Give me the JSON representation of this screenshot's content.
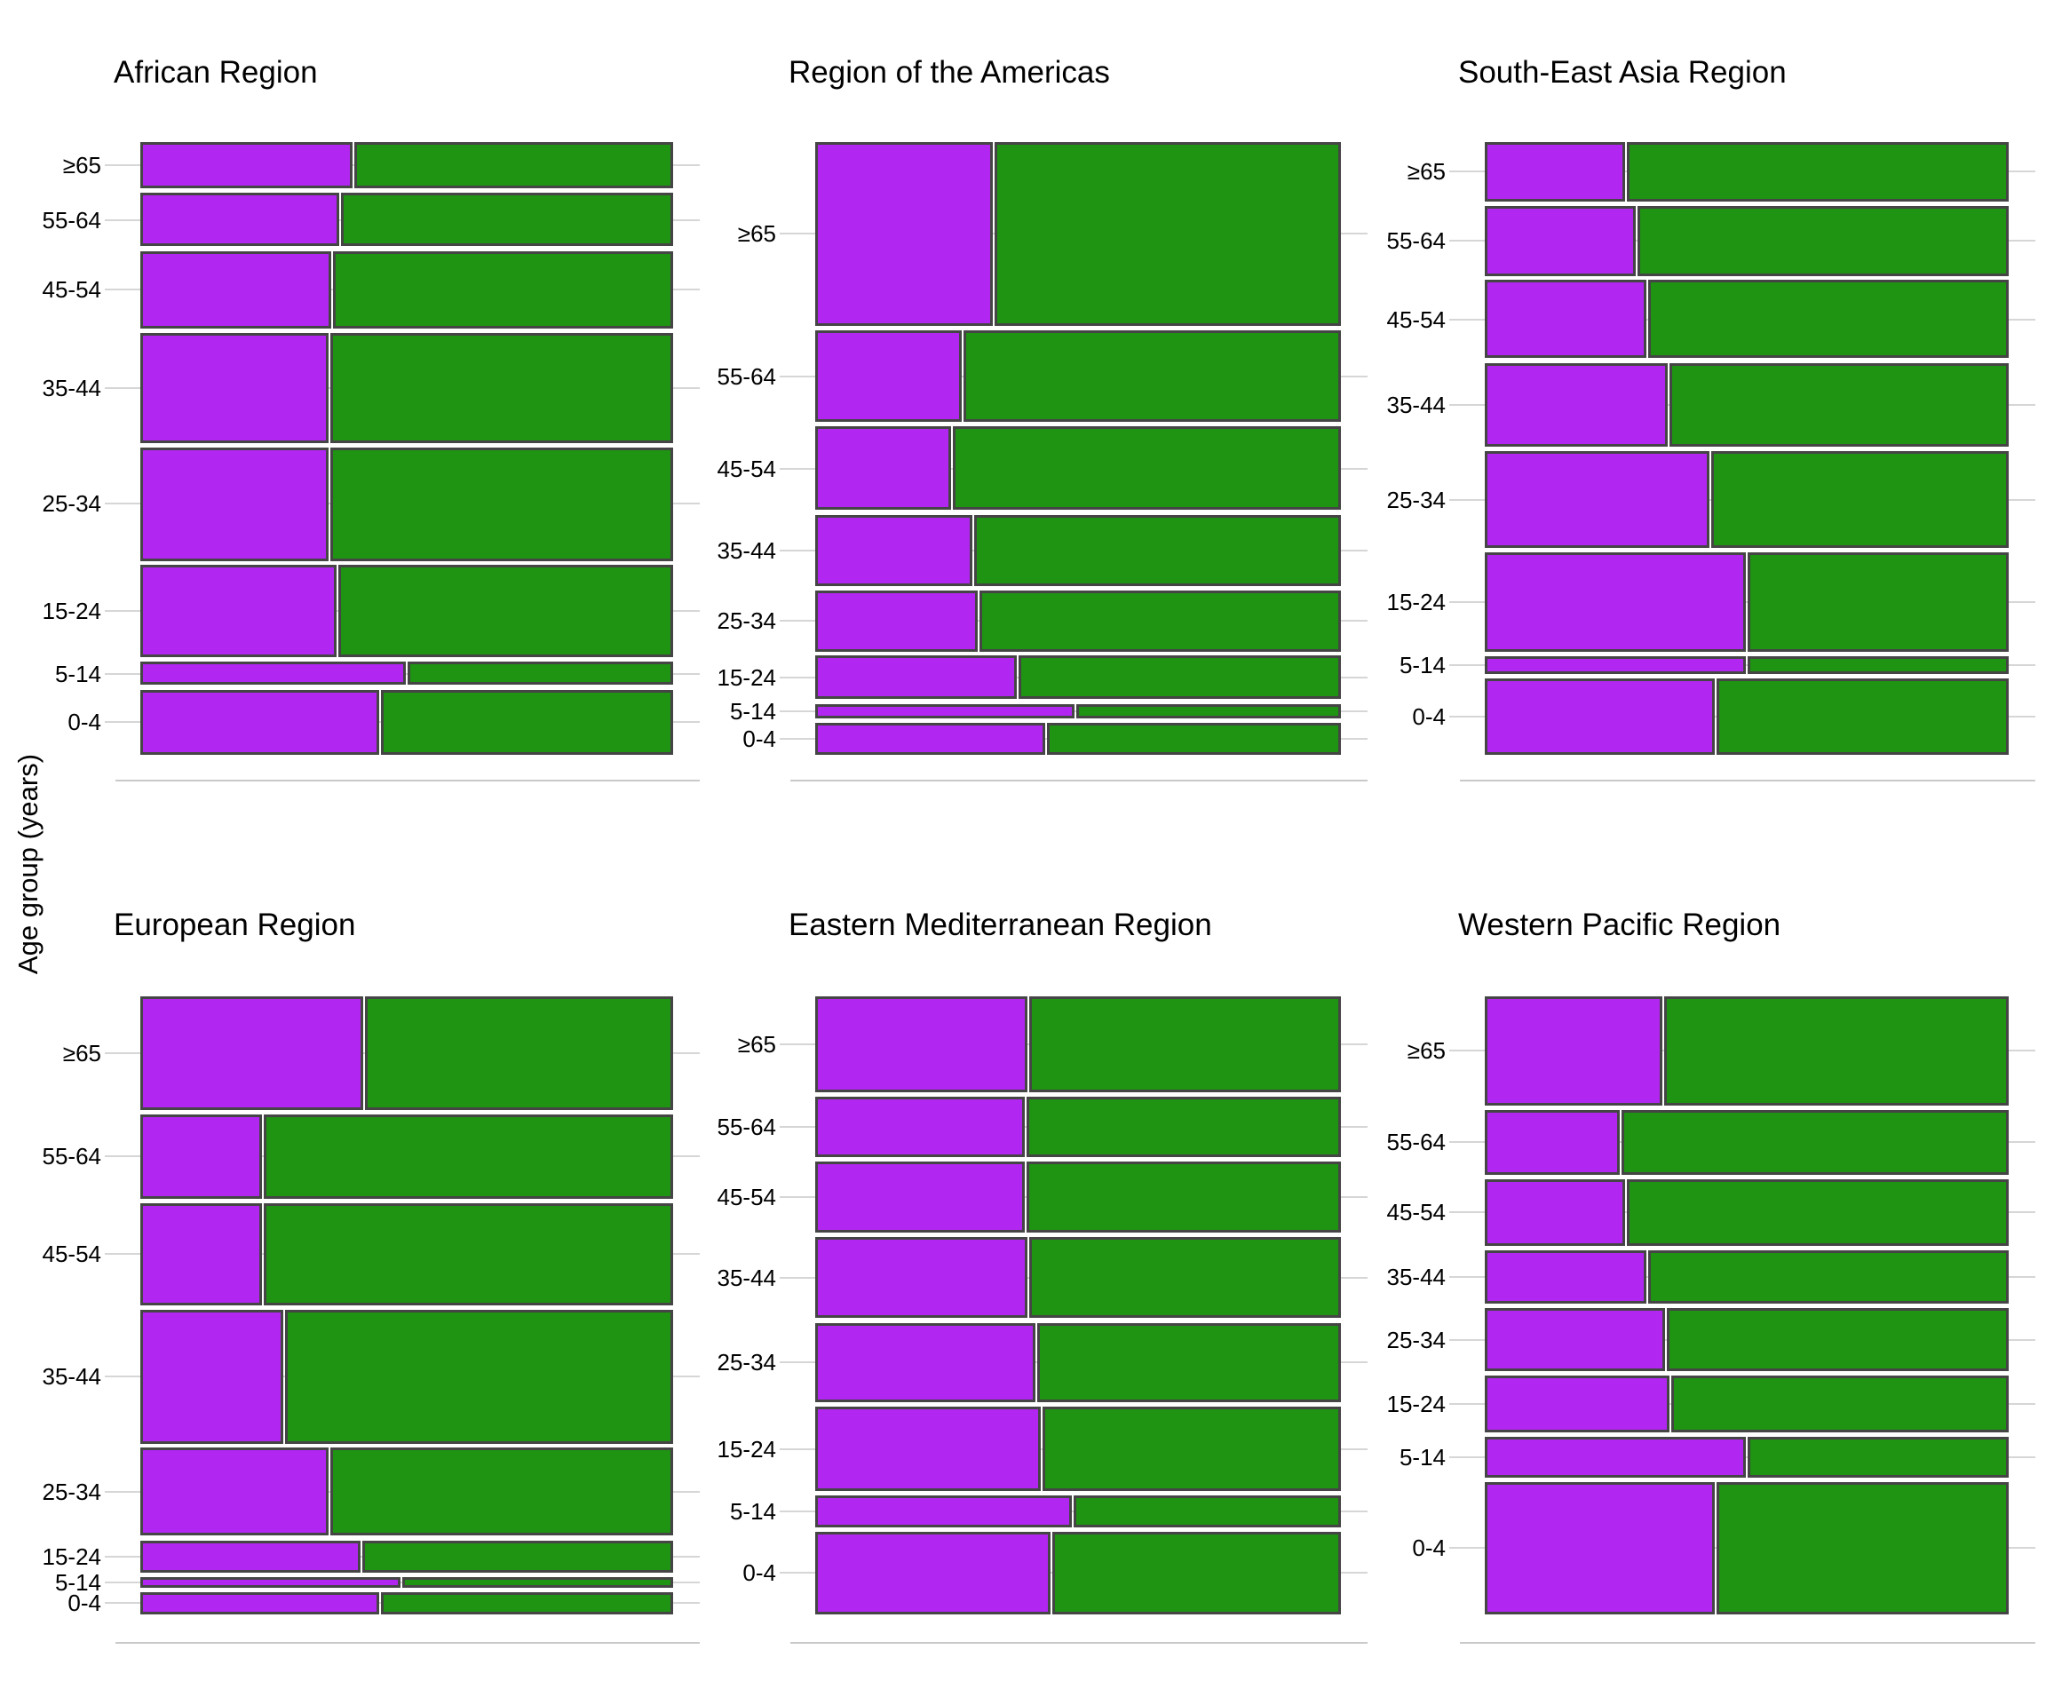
{
  "figure": {
    "y_axis_title": "Age group (years)"
  },
  "chart_data": {
    "type": "mosaic",
    "title": "",
    "ylabel": "Age group (years)",
    "age_groups_top_to_bottom": [
      "≥65",
      "55-64",
      "45-54",
      "35-44",
      "25-34",
      "15-24",
      "5-14",
      "0-4"
    ],
    "legend": "none shown",
    "grid": "horizontal gridline at each age-group tick, light gray; bottom axis line per panel",
    "colors": {
      "purple_segment": "#B226F2",
      "green_segment": "#1F9312",
      "bar_border": "#454545",
      "gridline": "#D6D6D6",
      "axis_line": "#C9C9C9",
      "text": "#000000"
    },
    "panels": [
      {
        "title": "African Region",
        "rows": [
          {
            "age": "≥65",
            "row_height_pct": 8.0,
            "purple_pct": 40.0
          },
          {
            "age": "55-64",
            "row_height_pct": 9.2,
            "purple_pct": 37.5
          },
          {
            "age": "45-54",
            "row_height_pct": 13.3,
            "purple_pct": 36.0
          },
          {
            "age": "35-44",
            "row_height_pct": 18.9,
            "purple_pct": 35.5
          },
          {
            "age": "25-34",
            "row_height_pct": 19.5,
            "purple_pct": 35.5
          },
          {
            "age": "15-24",
            "row_height_pct": 15.9,
            "purple_pct": 37.0
          },
          {
            "age": "5-14",
            "row_height_pct": 4.0,
            "purple_pct": 50.0
          },
          {
            "age": "0-4",
            "row_height_pct": 11.2,
            "purple_pct": 45.0
          }
        ]
      },
      {
        "title": "Region of the Americas",
        "rows": [
          {
            "age": "≥65",
            "row_height_pct": 31.6,
            "purple_pct": 34.0
          },
          {
            "age": "55-64",
            "row_height_pct": 15.8,
            "purple_pct": 28.0
          },
          {
            "age": "45-54",
            "row_height_pct": 14.4,
            "purple_pct": 26.0
          },
          {
            "age": "35-44",
            "row_height_pct": 12.2,
            "purple_pct": 30.0
          },
          {
            "age": "25-34",
            "row_height_pct": 10.5,
            "purple_pct": 31.0
          },
          {
            "age": "15-24",
            "row_height_pct": 7.5,
            "purple_pct": 38.5
          },
          {
            "age": "5-14",
            "row_height_pct": 2.5,
            "purple_pct": 49.5
          },
          {
            "age": "0-4",
            "row_height_pct": 5.5,
            "purple_pct": 44.0
          }
        ]
      },
      {
        "title": "South-East Asia Region",
        "rows": [
          {
            "age": "≥65",
            "row_height_pct": 10.2,
            "purple_pct": 27.0
          },
          {
            "age": "55-64",
            "row_height_pct": 12.0,
            "purple_pct": 29.0
          },
          {
            "age": "45-54",
            "row_height_pct": 13.5,
            "purple_pct": 31.0
          },
          {
            "age": "35-44",
            "row_height_pct": 14.4,
            "purple_pct": 35.0
          },
          {
            "age": "25-34",
            "row_height_pct": 16.6,
            "purple_pct": 43.0
          },
          {
            "age": "15-24",
            "row_height_pct": 17.1,
            "purple_pct": 50.0
          },
          {
            "age": "5-14",
            "row_height_pct": 3.0,
            "purple_pct": 50.0
          },
          {
            "age": "0-4",
            "row_height_pct": 13.2,
            "purple_pct": 44.0
          }
        ]
      },
      {
        "title": "European Region",
        "rows": [
          {
            "age": "≥65",
            "row_height_pct": 19.4,
            "purple_pct": 42.0
          },
          {
            "age": "55-64",
            "row_height_pct": 14.3,
            "purple_pct": 23.0
          },
          {
            "age": "45-54",
            "row_height_pct": 17.4,
            "purple_pct": 23.0
          },
          {
            "age": "35-44",
            "row_height_pct": 22.8,
            "purple_pct": 27.0
          },
          {
            "age": "25-34",
            "row_height_pct": 15.0,
            "purple_pct": 35.5
          },
          {
            "age": "15-24",
            "row_height_pct": 5.5,
            "purple_pct": 41.5
          },
          {
            "age": "5-14",
            "row_height_pct": 1.8,
            "purple_pct": 49.0
          },
          {
            "age": "0-4",
            "row_height_pct": 3.8,
            "purple_pct": 45.0
          }
        ]
      },
      {
        "title": "Eastern Mediterranean Region",
        "rows": [
          {
            "age": "≥65",
            "row_height_pct": 16.4,
            "purple_pct": 40.5
          },
          {
            "age": "55-64",
            "row_height_pct": 10.3,
            "purple_pct": 40.0
          },
          {
            "age": "45-54",
            "row_height_pct": 12.1,
            "purple_pct": 40.0
          },
          {
            "age": "35-44",
            "row_height_pct": 13.8,
            "purple_pct": 40.5
          },
          {
            "age": "25-34",
            "row_height_pct": 13.5,
            "purple_pct": 42.0
          },
          {
            "age": "15-24",
            "row_height_pct": 14.4,
            "purple_pct": 43.0
          },
          {
            "age": "5-14",
            "row_height_pct": 5.4,
            "purple_pct": 49.0
          },
          {
            "age": "0-4",
            "row_height_pct": 14.1,
            "purple_pct": 45.0
          }
        ]
      },
      {
        "title": "Western Pacific Region",
        "rows": [
          {
            "age": "≥65",
            "row_height_pct": 18.6,
            "purple_pct": 34.0
          },
          {
            "age": "55-64",
            "row_height_pct": 11.0,
            "purple_pct": 26.0
          },
          {
            "age": "45-54",
            "row_height_pct": 11.4,
            "purple_pct": 27.0
          },
          {
            "age": "35-44",
            "row_height_pct": 9.1,
            "purple_pct": 31.0
          },
          {
            "age": "25-34",
            "row_height_pct": 10.7,
            "purple_pct": 34.5
          },
          {
            "age": "15-24",
            "row_height_pct": 9.7,
            "purple_pct": 35.5
          },
          {
            "age": "5-14",
            "row_height_pct": 6.9,
            "purple_pct": 50.0
          },
          {
            "age": "0-4",
            "row_height_pct": 22.6,
            "purple_pct": 44.0
          }
        ]
      }
    ]
  }
}
